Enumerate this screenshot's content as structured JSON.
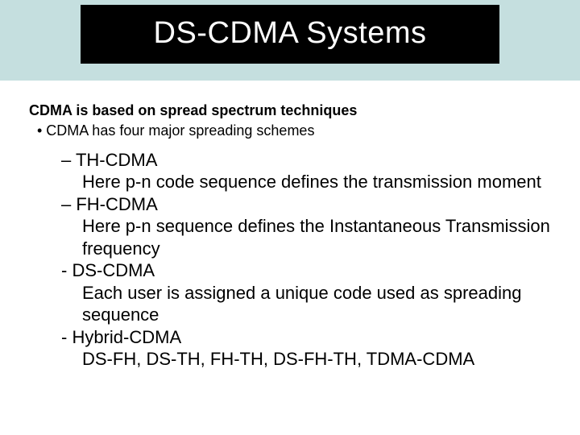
{
  "title": "DS-CDMA Systems",
  "intro": "CDMA is based on spread spectrum techniques",
  "bullet": "•   CDMA has four major spreading schemes",
  "schemes": [
    {
      "head": "– TH-CDMA",
      "desc": " Here p-n code sequence defines the transmission moment"
    },
    {
      "head": "– FH-CDMA",
      "desc": "Here p-n sequence defines the Instantaneous Transmission frequency"
    },
    {
      "head": "- DS-CDMA",
      "desc": "Each user is assigned a unique code used as spreading sequence"
    },
    {
      "head": "- Hybrid-CDMA",
      "desc": "DS-FH, DS-TH, FH-TH, DS-FH-TH,  TDMA-CDMA"
    }
  ],
  "colors": {
    "header_band": "#c5dfdf",
    "title_bg": "#000000",
    "title_fg": "#ffffff",
    "body_bg": "#ffffff",
    "text": "#000000"
  },
  "typography": {
    "title_fontsize": 38,
    "intro_fontsize": 18,
    "body_fontsize": 22,
    "font_family": "Arial"
  }
}
